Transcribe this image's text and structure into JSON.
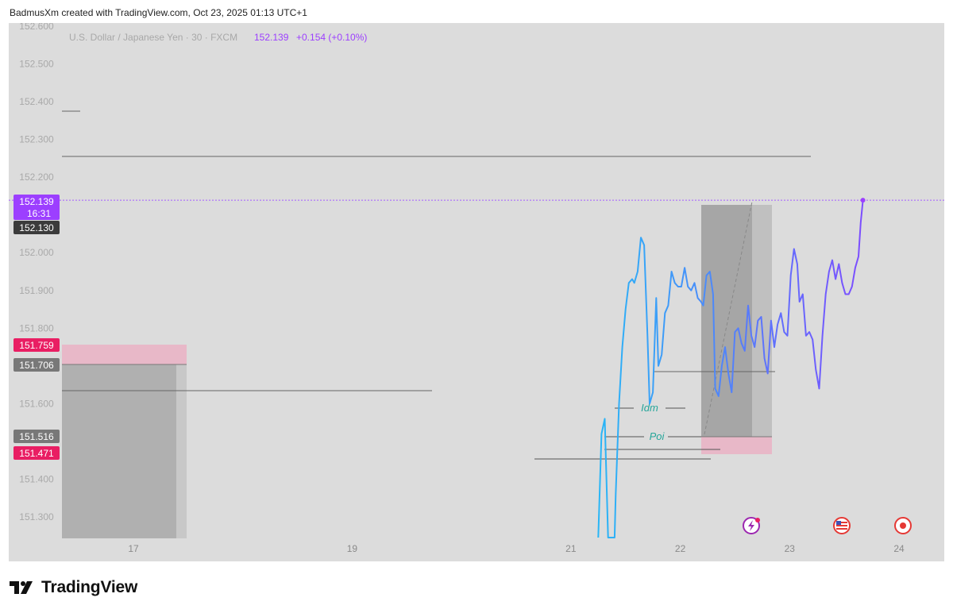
{
  "header": {
    "text": "BadmusXm created with TradingView.com, Oct 23, 2025 01:13 UTC+1"
  },
  "legend": {
    "symbol": "U.S. Dollar / Japanese Yen · 30 · FXCM",
    "price": "152.139",
    "change": "+0.154 (+0.10%)"
  },
  "price_badges": {
    "last": "152.139",
    "countdown": "16:31",
    "prev": "152.130",
    "zone_top": "151.759",
    "zone_mid": "151.706",
    "zone2_top": "151.516",
    "zone2_bottom": "151.471"
  },
  "annotations": {
    "idm": "Idm",
    "poi": "Poi"
  },
  "footer": {
    "brand": "TradingView"
  },
  "colors": {
    "background": "#dcdcdc",
    "line_start": "#29b6f6",
    "line_end": "#7c4dff",
    "last_price": "#9c3fff",
    "zone_red": "#e91e63",
    "zone_pink": "#e8b8c8",
    "label_teal": "#26a69a"
  },
  "chart_data": {
    "type": "line",
    "title": "U.S. Dollar / Japanese Yen · 30 · FXCM",
    "ylim": [
      151.24,
      152.61
    ],
    "y_ticks": [
      152.6,
      152.5,
      152.4,
      152.3,
      152.2,
      152.0,
      151.9,
      151.8,
      151.6,
      151.4,
      151.3
    ],
    "y_tick_labels": [
      "152.600",
      "152.500",
      "152.400",
      "152.300",
      "152.200",
      "152.000",
      "151.900",
      "151.800",
      "151.600",
      "151.400",
      "151.300"
    ],
    "x_range": [
      16.5,
      24.3
    ],
    "x_ticks": [
      17,
      19,
      21,
      22,
      23,
      24
    ],
    "x_tick_labels": [
      "17",
      "19",
      "21",
      "22",
      "23",
      "24"
    ],
    "series": [
      {
        "values": [
          [
            21.25,
            151.24
          ],
          [
            21.28,
            151.52
          ],
          [
            21.31,
            151.56
          ],
          [
            21.34,
            151.24
          ],
          [
            21.37,
            151.24
          ],
          [
            21.4,
            151.24
          ],
          [
            21.41,
            151.36
          ],
          [
            21.44,
            151.6
          ],
          [
            21.47,
            151.75
          ],
          [
            21.5,
            151.85
          ],
          [
            21.53,
            151.92
          ],
          [
            21.56,
            151.93
          ],
          [
            21.58,
            151.92
          ],
          [
            21.61,
            151.95
          ],
          [
            21.64,
            152.04
          ],
          [
            21.67,
            152.02
          ],
          [
            21.7,
            151.78
          ],
          [
            21.72,
            151.6
          ],
          [
            21.75,
            151.63
          ],
          [
            21.78,
            151.88
          ],
          [
            21.8,
            151.7
          ],
          [
            21.83,
            151.73
          ],
          [
            21.86,
            151.84
          ],
          [
            21.89,
            151.86
          ],
          [
            21.92,
            151.95
          ],
          [
            21.95,
            151.92
          ],
          [
            21.98,
            151.91
          ],
          [
            22.01,
            151.91
          ],
          [
            22.04,
            151.96
          ],
          [
            22.07,
            151.91
          ],
          [
            22.1,
            151.9
          ],
          [
            22.13,
            151.92
          ],
          [
            22.16,
            151.88
          ],
          [
            22.19,
            151.87
          ],
          [
            22.21,
            151.86
          ],
          [
            22.24,
            151.94
          ],
          [
            22.27,
            151.95
          ],
          [
            22.3,
            151.89
          ],
          [
            22.32,
            151.64
          ],
          [
            22.35,
            151.62
          ],
          [
            22.38,
            151.7
          ],
          [
            22.41,
            151.75
          ],
          [
            22.44,
            151.68
          ],
          [
            22.47,
            151.63
          ],
          [
            22.5,
            151.79
          ],
          [
            22.53,
            151.8
          ],
          [
            22.56,
            151.76
          ],
          [
            22.59,
            151.74
          ],
          [
            22.62,
            151.86
          ],
          [
            22.65,
            151.78
          ],
          [
            22.68,
            151.75
          ],
          [
            22.71,
            151.82
          ],
          [
            22.74,
            151.83
          ],
          [
            22.77,
            151.72
          ],
          [
            22.8,
            151.68
          ],
          [
            22.83,
            151.82
          ],
          [
            22.86,
            151.75
          ],
          [
            22.89,
            151.81
          ],
          [
            22.92,
            151.84
          ],
          [
            22.95,
            151.79
          ],
          [
            22.98,
            151.78
          ],
          [
            23.01,
            151.94
          ],
          [
            23.04,
            152.01
          ],
          [
            23.07,
            151.97
          ],
          [
            23.09,
            151.87
          ],
          [
            23.12,
            151.89
          ],
          [
            23.15,
            151.78
          ],
          [
            23.18,
            151.79
          ],
          [
            23.21,
            151.77
          ],
          [
            23.24,
            151.69
          ],
          [
            23.27,
            151.64
          ],
          [
            23.3,
            151.78
          ],
          [
            23.33,
            151.89
          ],
          [
            23.36,
            151.95
          ],
          [
            23.39,
            151.98
          ],
          [
            23.42,
            151.93
          ],
          [
            23.45,
            151.97
          ],
          [
            23.48,
            151.92
          ],
          [
            23.51,
            151.89
          ],
          [
            23.54,
            151.89
          ],
          [
            23.57,
            151.91
          ],
          [
            23.6,
            151.96
          ],
          [
            23.63,
            151.99
          ],
          [
            23.65,
            152.08
          ],
          [
            23.67,
            152.139
          ]
        ]
      }
    ]
  }
}
